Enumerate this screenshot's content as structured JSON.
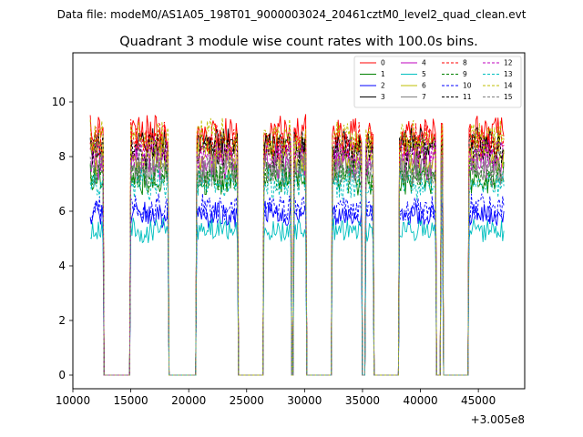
{
  "chart_data": {
    "type": "line",
    "suptitle": "Data file: modeM0/AS1A05_198T01_9000003024_20461cztM0_level2_quad_clean.evt",
    "title": "Quadrant 3 module wise count rates with 100.0s bins.",
    "xlabel": "",
    "ylabel": "",
    "x_offset_label": "+3.005e8",
    "xlim": [
      10000,
      49000
    ],
    "ylim": [
      -0.5,
      11.8
    ],
    "x_ticks": [
      10000,
      15000,
      20000,
      25000,
      30000,
      35000,
      40000,
      45000
    ],
    "x_tick_labels": [
      "10000",
      "15000",
      "20000",
      "25000",
      "30000",
      "35000",
      "40000",
      "45000"
    ],
    "y_ticks": [
      0,
      2,
      4,
      6,
      8,
      10
    ],
    "y_tick_labels": [
      "0",
      "2",
      "4",
      "6",
      "8",
      "10"
    ],
    "legend_position": "top-right",
    "bin_size_s": 100,
    "segments": [
      {
        "start": 11500,
        "end": 12600
      },
      {
        "start": 15000,
        "end": 16200
      },
      {
        "start": 16300,
        "end": 18200
      },
      {
        "start": 20700,
        "end": 24200
      },
      {
        "start": 26500,
        "end": 28800
      },
      {
        "start": 29100,
        "end": 30100
      },
      {
        "start": 32400,
        "end": 34900
      },
      {
        "start": 35300,
        "end": 35900
      },
      {
        "start": 38200,
        "end": 40800
      },
      {
        "start": 40900,
        "end": 41300
      },
      {
        "start": 41800,
        "end": 41900
      },
      {
        "start": 44200,
        "end": 47200
      }
    ],
    "series": [
      {
        "name": "0",
        "color": "#ff0000",
        "dash": "solid",
        "level": 8.8
      },
      {
        "name": "1",
        "color": "#008000",
        "dash": "solid",
        "level": 7.2
      },
      {
        "name": "2",
        "color": "#0000ff",
        "dash": "solid",
        "level": 5.9
      },
      {
        "name": "3",
        "color": "#000000",
        "dash": "solid",
        "level": 8.4
      },
      {
        "name": "4",
        "color": "#bf00bf",
        "dash": "solid",
        "level": 7.8
      },
      {
        "name": "5",
        "color": "#00bfbf",
        "dash": "solid",
        "level": 5.3
      },
      {
        "name": "6",
        "color": "#bfbf00",
        "dash": "solid",
        "level": 8.0
      },
      {
        "name": "7",
        "color": "#808080",
        "dash": "solid",
        "level": 7.5
      },
      {
        "name": "8",
        "color": "#ff0000",
        "dash": "dashed",
        "level": 8.6
      },
      {
        "name": "9",
        "color": "#008000",
        "dash": "dashed",
        "level": 7.3
      },
      {
        "name": "10",
        "color": "#0000ff",
        "dash": "dashed",
        "level": 6.1
      },
      {
        "name": "11",
        "color": "#000000",
        "dash": "dashed",
        "level": 8.2
      },
      {
        "name": "12",
        "color": "#bf00bf",
        "dash": "dashed",
        "level": 8.1
      },
      {
        "name": "13",
        "color": "#00bfbf",
        "dash": "dashed",
        "level": 7.0
      },
      {
        "name": "14",
        "color": "#bfbf00",
        "dash": "dashed",
        "level": 8.7
      },
      {
        "name": "15",
        "color": "#808080",
        "dash": "dashed",
        "level": 7.6
      }
    ]
  }
}
